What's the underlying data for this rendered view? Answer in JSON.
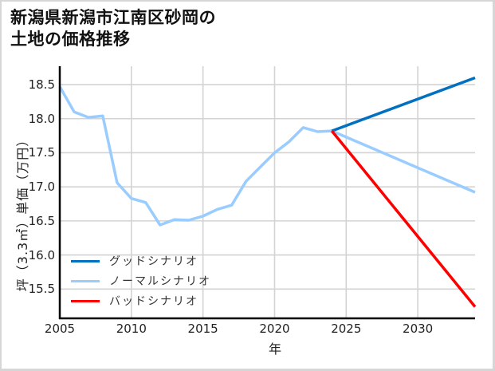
{
  "title_lines": [
    "新潟県新潟市江南区砂岡の",
    "土地の価格推移"
  ],
  "chart_data": {
    "type": "line",
    "title": "新潟県新潟市江南区砂岡の土地の価格推移",
    "xlabel": "年",
    "ylabel": "坪（3.3㎡）単価（万円）",
    "xlim": [
      2005,
      2034
    ],
    "ylim": [
      15.07,
      18.77
    ],
    "xticks": [
      2005,
      2010,
      2015,
      2020,
      2025,
      2030
    ],
    "xtick_labels": [
      "2005",
      "2010",
      "2015",
      "2020",
      "2025",
      "2030"
    ],
    "yticks": [
      15.5,
      16.0,
      16.5,
      17.0,
      17.5,
      18.0,
      18.5
    ],
    "ytick_labels": [
      "15.5",
      "16.0",
      "16.5",
      "17.0",
      "17.5",
      "18.0",
      "18.5"
    ],
    "grid": true,
    "legend_position": "lower left",
    "series": [
      {
        "name": "ノーマルシナリオ",
        "color": "#99CCFF",
        "x": [
          2005,
          2006,
          2007,
          2008,
          2009,
          2010,
          2011,
          2012,
          2013,
          2014,
          2015,
          2016,
          2017,
          2018,
          2019,
          2020,
          2021,
          2022,
          2023,
          2024,
          2034
        ],
        "y": [
          18.47,
          18.1,
          18.02,
          18.04,
          17.06,
          16.83,
          16.77,
          16.44,
          16.52,
          16.51,
          16.57,
          16.67,
          16.73,
          17.08,
          17.29,
          17.5,
          17.66,
          17.87,
          17.81,
          17.82,
          16.92
        ]
      },
      {
        "name": "グッドシナリオ",
        "color": "#0070C0",
        "x": [
          2024,
          2034
        ],
        "y": [
          17.82,
          18.6
        ]
      },
      {
        "name": "バッドシナリオ",
        "color": "#FF0000",
        "x": [
          2024,
          2034
        ],
        "y": [
          17.82,
          15.24
        ]
      }
    ]
  },
  "legend": [
    {
      "label": "グッドシナリオ",
      "color": "#0070C0"
    },
    {
      "label": "ノーマルシナリオ",
      "color": "#99CCFF"
    },
    {
      "label": "バッドシナリオ",
      "color": "#FF0000"
    }
  ]
}
